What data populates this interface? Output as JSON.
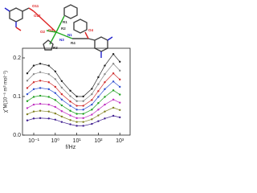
{
  "chart_data": {
    "type": "line",
    "x_label": "f/Hz",
    "y_label": "χ''M(10⁻⁶ m³ mol⁻¹)",
    "x_scale": "log",
    "xlim": [
      0.03,
      3000
    ],
    "xticks": [
      {
        "value": 0.1,
        "label": "10⁻¹"
      },
      {
        "value": 1,
        "label": "10⁰"
      },
      {
        "value": 10,
        "label": "10¹"
      },
      {
        "value": 100,
        "label": "10²"
      },
      {
        "value": 1000,
        "label": "10³"
      }
    ],
    "ylim": [
      0,
      0.225
    ],
    "yticks": [
      {
        "value": 0,
        "label": "0.0"
      },
      0.1,
      0.2
    ],
    "x": [
      0.05,
      0.1,
      0.2,
      0.5,
      1,
      2,
      5,
      10,
      20,
      50,
      100,
      200,
      500,
      1000
    ],
    "series": [
      {
        "color": "#222222",
        "values": [
          0.16,
          0.18,
          0.185,
          0.18,
          0.165,
          0.14,
          0.115,
          0.1,
          0.1,
          0.12,
          0.15,
          0.18,
          0.21,
          0.19
        ]
      },
      {
        "color": "#888888",
        "values": [
          0.141,
          0.158,
          0.163,
          0.158,
          0.145,
          0.123,
          0.101,
          0.088,
          0.088,
          0.106,
          0.132,
          0.158,
          0.185,
          0.167
        ]
      },
      {
        "color": "#d03030",
        "values": [
          0.122,
          0.137,
          0.141,
          0.137,
          0.125,
          0.106,
          0.087,
          0.076,
          0.076,
          0.091,
          0.114,
          0.137,
          0.16,
          0.144
        ]
      },
      {
        "color": "#3050d0",
        "values": [
          0.106,
          0.119,
          0.122,
          0.119,
          0.109,
          0.092,
          0.076,
          0.066,
          0.066,
          0.079,
          0.099,
          0.119,
          0.139,
          0.125
        ]
      },
      {
        "color": "#20a020",
        "values": [
          0.088,
          0.099,
          0.102,
          0.099,
          0.091,
          0.077,
          0.063,
          0.055,
          0.055,
          0.066,
          0.083,
          0.099,
          0.116,
          0.105
        ]
      },
      {
        "color": "#c030c0",
        "values": [
          0.07,
          0.079,
          0.081,
          0.079,
          0.073,
          0.062,
          0.051,
          0.044,
          0.044,
          0.053,
          0.066,
          0.079,
          0.092,
          0.084
        ]
      },
      {
        "color": "#808020",
        "values": [
          0.054,
          0.061,
          0.063,
          0.061,
          0.056,
          0.048,
          0.039,
          0.034,
          0.034,
          0.041,
          0.051,
          0.061,
          0.071,
          0.065
        ]
      },
      {
        "color": "#402090",
        "values": [
          0.038,
          0.043,
          0.044,
          0.043,
          0.04,
          0.034,
          0.028,
          0.024,
          0.024,
          0.029,
          0.036,
          0.043,
          0.05,
          0.046
        ]
      }
    ]
  },
  "structure": {
    "labels": [
      "O11",
      "O12",
      "R1",
      "R2",
      "O2",
      "N1",
      "N3",
      "O3",
      "R3",
      "R4",
      "O4"
    ]
  }
}
